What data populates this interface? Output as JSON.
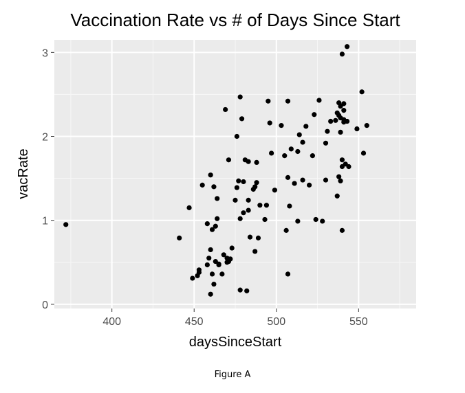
{
  "chart_data": {
    "type": "scatter",
    "title": "Vaccination Rate vs # of Days Since Start",
    "xlabel": "daysSinceStart",
    "ylabel": "vacRate",
    "xlim": [
      365,
      585
    ],
    "ylim": [
      -0.05,
      3.15
    ],
    "x_ticks": [
      400,
      450,
      500,
      550
    ],
    "y_ticks": [
      0,
      1,
      2,
      3
    ],
    "x_tick_labels": [
      "400",
      "450",
      "500",
      "550"
    ],
    "y_tick_labels": [
      "0",
      "1",
      "2",
      "3"
    ],
    "grid": true,
    "background": "#ebebeb",
    "point_color": "#000000",
    "points": [
      [
        372,
        0.95
      ],
      [
        441,
        0.79
      ],
      [
        447,
        1.15
      ],
      [
        449,
        0.31
      ],
      [
        452,
        0.34
      ],
      [
        453,
        0.38
      ],
      [
        453,
        0.41
      ],
      [
        455,
        1.42
      ],
      [
        458,
        0.47
      ],
      [
        458,
        0.96
      ],
      [
        459,
        0.55
      ],
      [
        460,
        1.54
      ],
      [
        460,
        0.65
      ],
      [
        460,
        0.12
      ],
      [
        461,
        0.36
      ],
      [
        461,
        0.89
      ],
      [
        462,
        1.4
      ],
      [
        462,
        0.24
      ],
      [
        463,
        0.51
      ],
      [
        463,
        0.93
      ],
      [
        464,
        1.26
      ],
      [
        464,
        1.02
      ],
      [
        465,
        0.47
      ],
      [
        465,
        0.48
      ],
      [
        467,
        0.36
      ],
      [
        468,
        0.59
      ],
      [
        469,
        2.32
      ],
      [
        470,
        0.5
      ],
      [
        470,
        0.55
      ],
      [
        471,
        0.51
      ],
      [
        471,
        1.72
      ],
      [
        472,
        0.54
      ],
      [
        473,
        0.67
      ],
      [
        475,
        1.24
      ],
      [
        476,
        2.0
      ],
      [
        476,
        1.39
      ],
      [
        477,
        1.47
      ],
      [
        478,
        2.47
      ],
      [
        478,
        0.17
      ],
      [
        478,
        1.02
      ],
      [
        479,
        2.21
      ],
      [
        480,
        1.09
      ],
      [
        480,
        1.46
      ],
      [
        481,
        1.72
      ],
      [
        482,
        0.16
      ],
      [
        483,
        1.7
      ],
      [
        483,
        1.12
      ],
      [
        483,
        1.24
      ],
      [
        484,
        0.8
      ],
      [
        486,
        1.37
      ],
      [
        487,
        0.63
      ],
      [
        487,
        1.4
      ],
      [
        488,
        1.69
      ],
      [
        488,
        1.45
      ],
      [
        489,
        0.79
      ],
      [
        490,
        1.18
      ],
      [
        493,
        1.01
      ],
      [
        494,
        1.18
      ],
      [
        495,
        2.42
      ],
      [
        496,
        2.16
      ],
      [
        497,
        1.8
      ],
      [
        499,
        1.36
      ],
      [
        503,
        2.13
      ],
      [
        505,
        1.77
      ],
      [
        506,
        0.88
      ],
      [
        507,
        0.36
      ],
      [
        507,
        1.51
      ],
      [
        507,
        2.42
      ],
      [
        508,
        1.17
      ],
      [
        509,
        1.85
      ],
      [
        511,
        1.44
      ],
      [
        513,
        1.82
      ],
      [
        513,
        0.99
      ],
      [
        514,
        2.02
      ],
      [
        516,
        1.48
      ],
      [
        516,
        1.93
      ],
      [
        518,
        2.12
      ],
      [
        520,
        1.42
      ],
      [
        522,
        1.77
      ],
      [
        523,
        2.26
      ],
      [
        524,
        1.01
      ],
      [
        526,
        2.43
      ],
      [
        528,
        0.99
      ],
      [
        530,
        1.48
      ],
      [
        530,
        1.92
      ],
      [
        531,
        2.06
      ],
      [
        533,
        2.18
      ],
      [
        536,
        2.19
      ],
      [
        537,
        1.29
      ],
      [
        537,
        2.28
      ],
      [
        538,
        2.25
      ],
      [
        538,
        2.4
      ],
      [
        538,
        1.52
      ],
      [
        539,
        1.47
      ],
      [
        539,
        2.05
      ],
      [
        539,
        2.22
      ],
      [
        539,
        2.36
      ],
      [
        540,
        2.98
      ],
      [
        540,
        0.88
      ],
      [
        540,
        1.72
      ],
      [
        540,
        1.64
      ],
      [
        541,
        2.31
      ],
      [
        541,
        2.39
      ],
      [
        541,
        2.2
      ],
      [
        541,
        2.17
      ],
      [
        542,
        1.67
      ],
      [
        543,
        3.07
      ],
      [
        543,
        2.18
      ],
      [
        544,
        1.64
      ],
      [
        549,
        2.09
      ],
      [
        552,
        2.53
      ],
      [
        553,
        1.8
      ],
      [
        555,
        2.13
      ]
    ]
  },
  "figure_caption": "Figure A"
}
